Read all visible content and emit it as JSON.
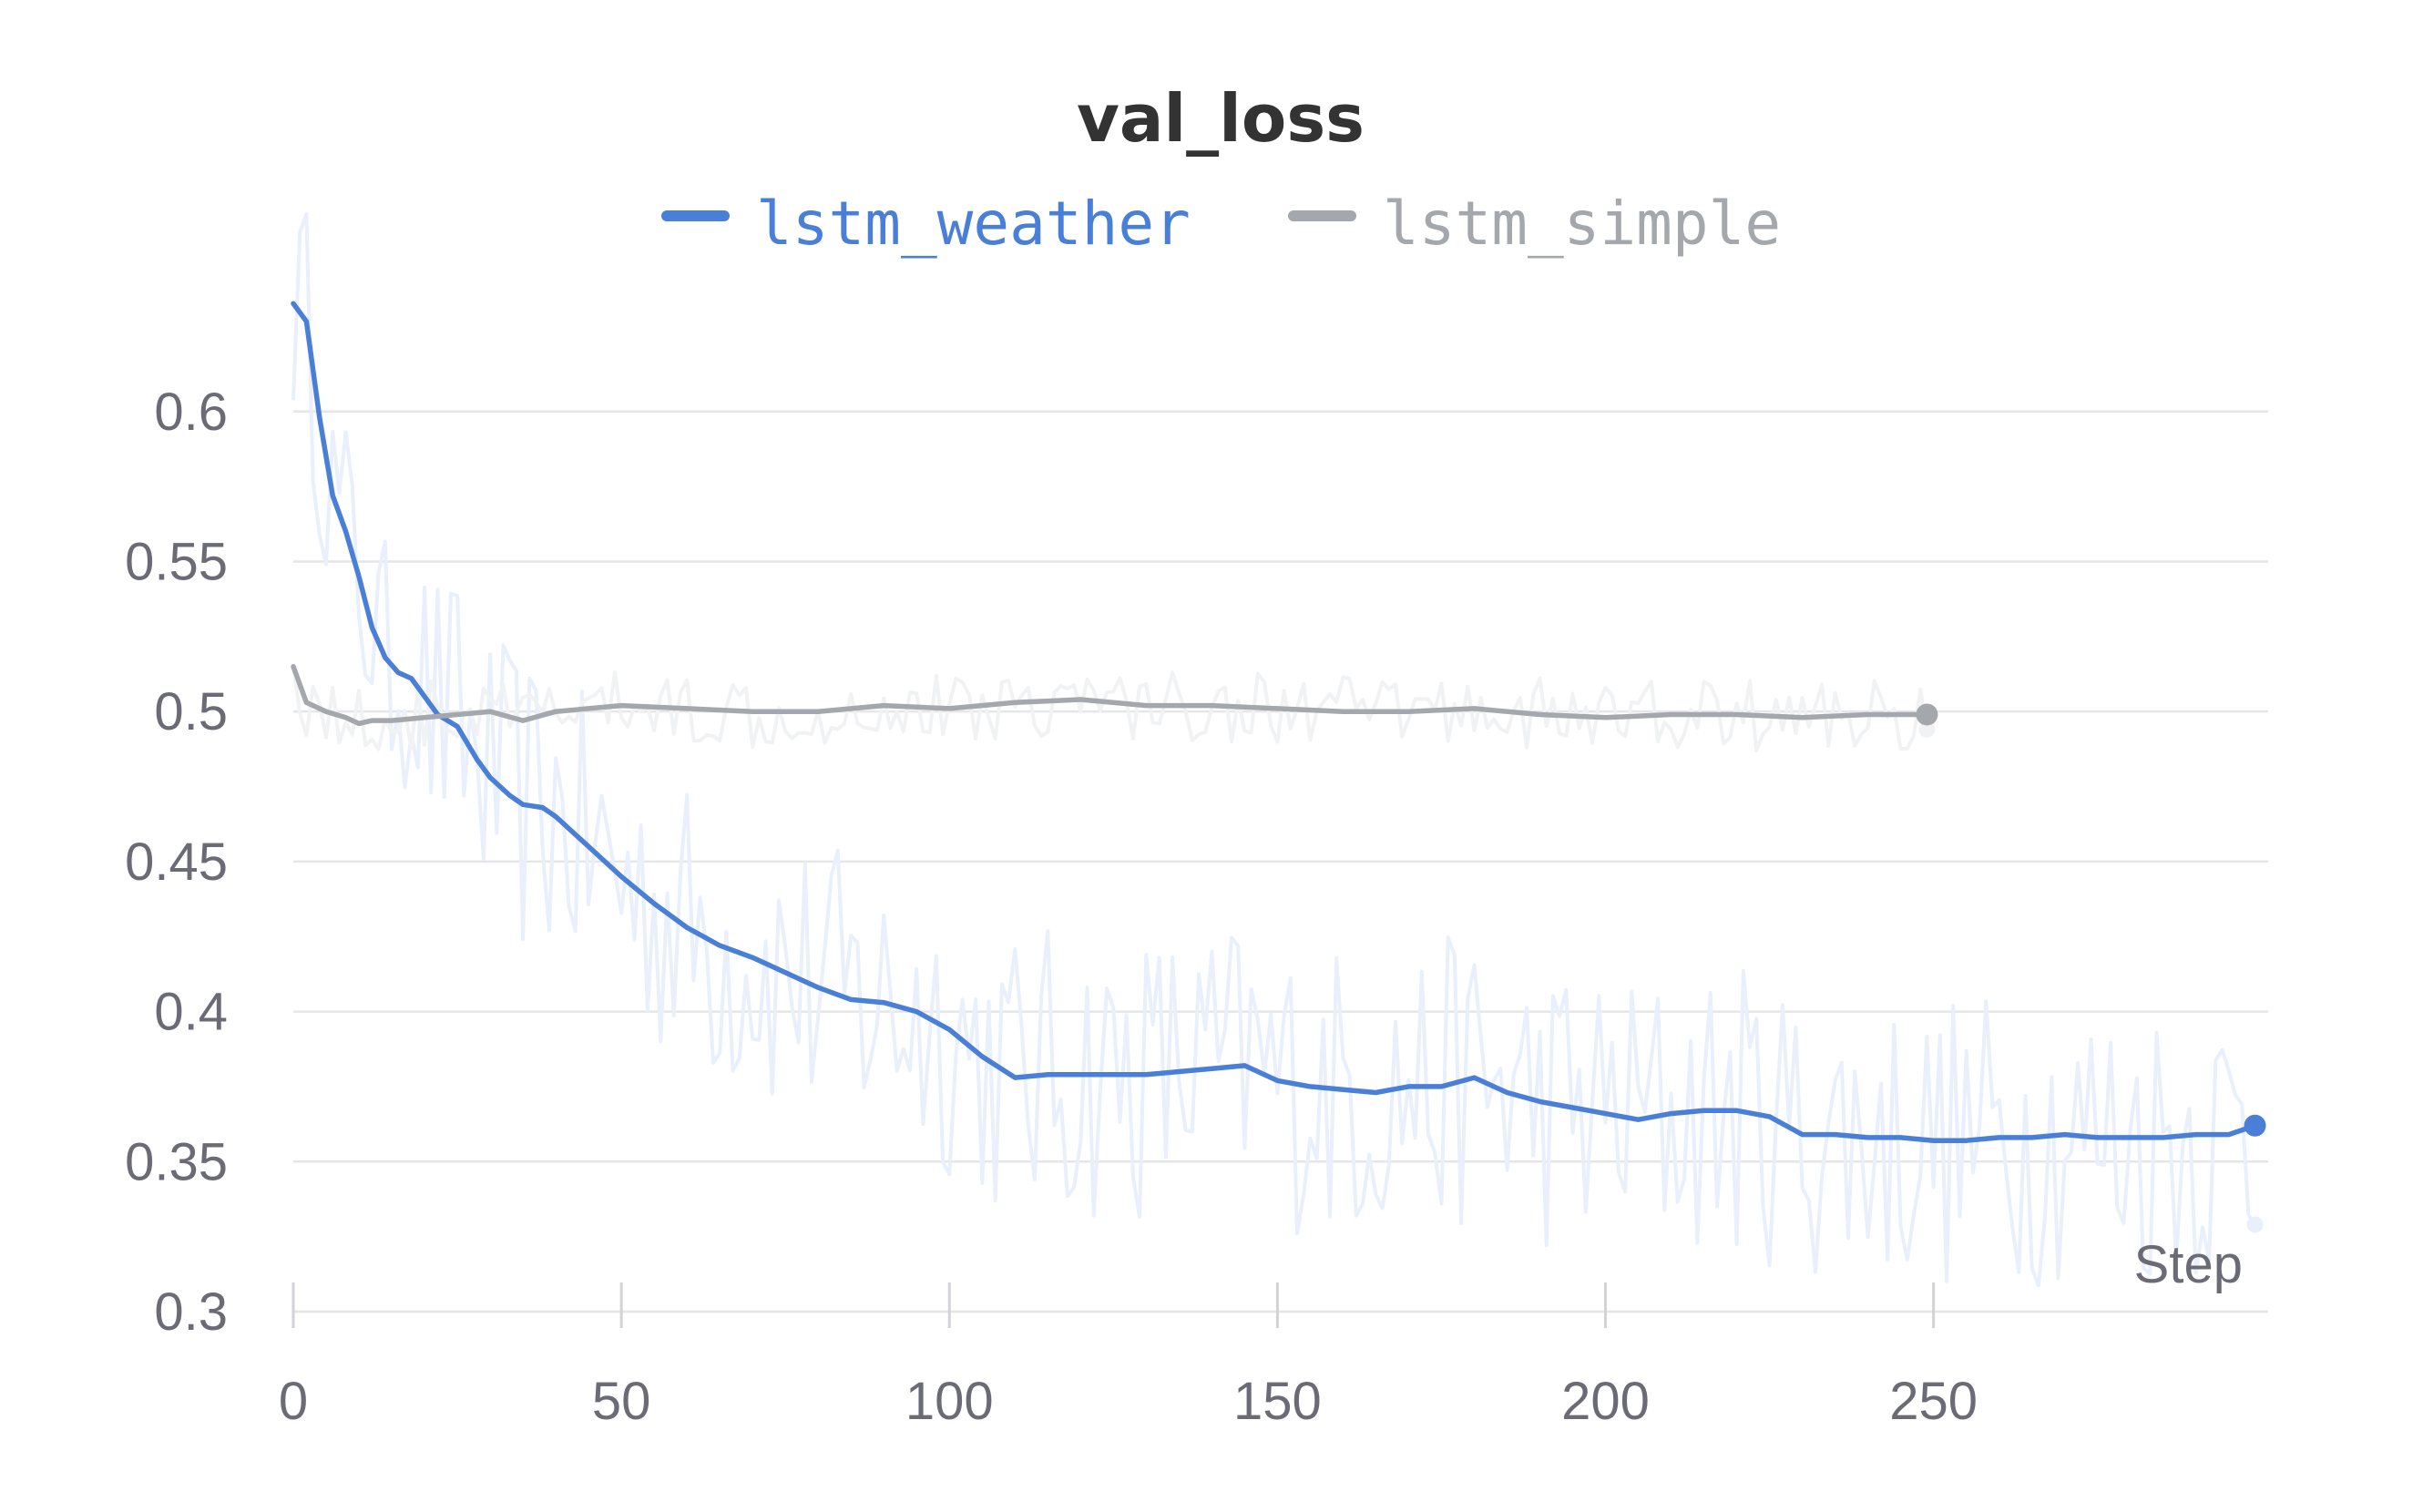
{
  "chart_data": {
    "type": "line",
    "title": "val_loss",
    "xlabel": "Step",
    "ylabel": "",
    "xlim": [
      0,
      300
    ],
    "ylim": [
      0.3,
      0.64
    ],
    "xticks": [
      0,
      50,
      100,
      150,
      200,
      250
    ],
    "xtick_labels": [
      "0",
      "50",
      "100",
      "150",
      "200",
      "250"
    ],
    "yticks": [
      0.3,
      0.35,
      0.4,
      0.45,
      0.5,
      0.55,
      0.6
    ],
    "ytick_labels": [
      "0.3",
      "0.35",
      "0.4",
      "0.45",
      "0.5",
      "0.55",
      "0.6"
    ],
    "grid": true,
    "legend_position": "top-center",
    "series": [
      {
        "name": "lstm_weather",
        "color": "#4a7fd8",
        "raw_color": "#e9f0fb",
        "x": [
          0,
          2,
          4,
          6,
          8,
          10,
          12,
          14,
          16,
          18,
          20,
          22,
          25,
          28,
          30,
          33,
          35,
          38,
          40,
          45,
          50,
          55,
          60,
          65,
          70,
          75,
          80,
          85,
          90,
          95,
          100,
          105,
          110,
          115,
          120,
          125,
          130,
          135,
          140,
          145,
          150,
          155,
          160,
          165,
          170,
          175,
          180,
          185,
          190,
          195,
          200,
          205,
          210,
          215,
          220,
          225,
          230,
          235,
          240,
          245,
          250,
          255,
          260,
          265,
          270,
          275,
          280,
          285,
          290,
          295,
          299
        ],
        "values": [
          0.636,
          0.63,
          0.598,
          0.572,
          0.56,
          0.545,
          0.528,
          0.518,
          0.513,
          0.511,
          0.505,
          0.499,
          0.495,
          0.484,
          0.478,
          0.472,
          0.469,
          0.468,
          0.465,
          0.455,
          0.445,
          0.436,
          0.428,
          0.422,
          0.418,
          0.413,
          0.408,
          0.404,
          0.403,
          0.4,
          0.394,
          0.385,
          0.378,
          0.379,
          0.379,
          0.379,
          0.379,
          0.38,
          0.381,
          0.382,
          0.377,
          0.375,
          0.374,
          0.373,
          0.375,
          0.375,
          0.378,
          0.373,
          0.37,
          0.368,
          0.366,
          0.364,
          0.366,
          0.367,
          0.367,
          0.365,
          0.359,
          0.359,
          0.358,
          0.358,
          0.357,
          0.357,
          0.358,
          0.358,
          0.359,
          0.358,
          0.358,
          0.358,
          0.359,
          0.359,
          0.362
        ],
        "raw_last": 0.329
      },
      {
        "name": "lstm_simple",
        "color": "#a4a7ab",
        "raw_color": "#f1f2f4",
        "x": [
          0,
          2,
          5,
          8,
          10,
          12,
          15,
          20,
          25,
          30,
          35,
          40,
          50,
          60,
          70,
          80,
          90,
          100,
          110,
          120,
          130,
          140,
          150,
          160,
          170,
          180,
          190,
          200,
          210,
          220,
          230,
          240,
          249
        ],
        "values": [
          0.515,
          0.503,
          0.5,
          0.498,
          0.496,
          0.497,
          0.497,
          0.498,
          0.499,
          0.5,
          0.497,
          0.5,
          0.502,
          0.501,
          0.5,
          0.5,
          0.502,
          0.501,
          0.503,
          0.504,
          0.502,
          0.502,
          0.501,
          0.5,
          0.5,
          0.501,
          0.499,
          0.498,
          0.499,
          0.499,
          0.498,
          0.499,
          0.499
        ],
        "raw_last": 0.494
      }
    ]
  }
}
